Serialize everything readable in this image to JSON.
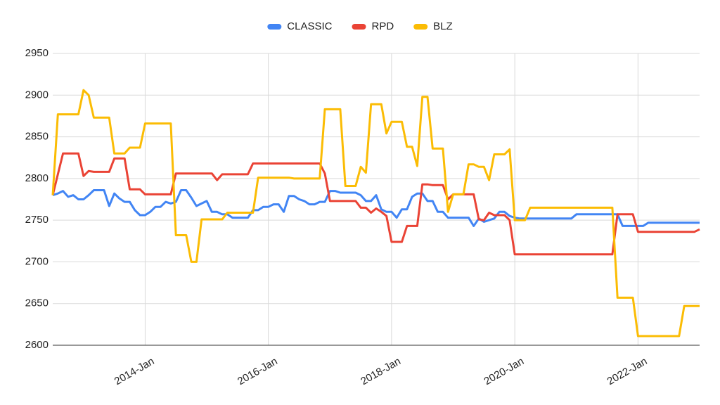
{
  "chart_data": {
    "type": "line",
    "categories": [
      null,
      null,
      null,
      null,
      null,
      null,
      null,
      null,
      null,
      null,
      null,
      null,
      null,
      null,
      null,
      null,
      null,
      null,
      "2014-Jan",
      null,
      null,
      null,
      null,
      null,
      null,
      null,
      null,
      null,
      null,
      null,
      null,
      null,
      null,
      null,
      null,
      null,
      null,
      null,
      null,
      null,
      null,
      null,
      "2016-Jan",
      null,
      null,
      null,
      null,
      null,
      null,
      null,
      null,
      null,
      null,
      null,
      null,
      null,
      null,
      null,
      null,
      null,
      null,
      null,
      null,
      null,
      null,
      null,
      "2018-Jan",
      null,
      null,
      null,
      null,
      null,
      null,
      null,
      null,
      null,
      null,
      null,
      null,
      null,
      null,
      null,
      null,
      null,
      null,
      null,
      null,
      null,
      null,
      null,
      "2020-Jan",
      null,
      null,
      null,
      null,
      null,
      null,
      null,
      null,
      null,
      null,
      null,
      null,
      null,
      null,
      null,
      null,
      null,
      null,
      null,
      null,
      null,
      null,
      null,
      "2022-Jan",
      null,
      null,
      null,
      null,
      null,
      null,
      null,
      null,
      null,
      null,
      null,
      null
    ],
    "series": [
      {
        "name": "CLASSIC",
        "color": "#4285f4",
        "values": [
          2780,
          2782,
          2785,
          2778,
          2780,
          2775,
          2775,
          2780,
          2786,
          2786,
          2786,
          2767,
          2782,
          2776,
          2772,
          2772,
          2762,
          2756,
          2756,
          2760,
          2766,
          2766,
          2772,
          2770,
          2772,
          2786,
          2786,
          2777,
          2767,
          2770,
          2773,
          2760,
          2760,
          2757,
          2757,
          2753,
          2753,
          2753,
          2753,
          2762,
          2762,
          2766,
          2766,
          2769,
          2769,
          2760,
          2779,
          2779,
          2775,
          2773,
          2769,
          2769,
          2772,
          2772,
          2785,
          2785,
          2783,
          2783,
          2783,
          2783,
          2780,
          2773,
          2773,
          2780,
          2763,
          2760,
          2760,
          2753,
          2763,
          2763,
          2778,
          2782,
          2782,
          2773,
          2773,
          2760,
          2760,
          2753,
          2753,
          2753,
          2753,
          2753,
          2743,
          2752,
          2748,
          2750,
          2752,
          2760,
          2760,
          2755,
          2753,
          2752,
          2752,
          2752,
          2752,
          2752,
          2752,
          2752,
          2752,
          2752,
          2752,
          2752,
          2757,
          2757,
          2757,
          2757,
          2757,
          2757,
          2757,
          2757,
          2757,
          2743,
          2743,
          2743,
          2743,
          2743,
          2747,
          2747,
          2747,
          2747,
          2747,
          2747,
          2747,
          2747,
          2747,
          2747,
          2747
        ]
      },
      {
        "name": "RPD",
        "color": "#ea4335",
        "values": [
          2780,
          2805,
          2830,
          2830,
          2830,
          2830,
          2803,
          2809,
          2808,
          2808,
          2808,
          2808,
          2824,
          2824,
          2824,
          2787,
          2787,
          2787,
          2781,
          2781,
          2781,
          2781,
          2781,
          2781,
          2806,
          2806,
          2806,
          2806,
          2806,
          2806,
          2806,
          2806,
          2798,
          2805,
          2805,
          2805,
          2805,
          2805,
          2805,
          2818,
          2818,
          2818,
          2818,
          2818,
          2818,
          2818,
          2818,
          2818,
          2818,
          2818,
          2818,
          2818,
          2818,
          2806,
          2773,
          2773,
          2773,
          2773,
          2773,
          2773,
          2765,
          2765,
          2759,
          2764,
          2760,
          2755,
          2724,
          2724,
          2724,
          2743,
          2743,
          2743,
          2793,
          2793,
          2792,
          2792,
          2792,
          2775,
          2781,
          2781,
          2781,
          2781,
          2781,
          2751,
          2750,
          2759,
          2756,
          2756,
          2756,
          2750,
          2709,
          2709,
          2709,
          2709,
          2709,
          2709,
          2709,
          2709,
          2709,
          2709,
          2709,
          2709,
          2709,
          2709,
          2709,
          2709,
          2709,
          2709,
          2709,
          2709,
          2757,
          2757,
          2757,
          2757,
          2736,
          2736,
          2736,
          2736,
          2736,
          2736,
          2736,
          2736,
          2736,
          2736,
          2736,
          2736,
          2739
        ]
      },
      {
        "name": "BLZ",
        "color": "#fbbc04",
        "values": [
          2780,
          2877,
          2877,
          2877,
          2877,
          2877,
          2906,
          2900,
          2873,
          2873,
          2873,
          2873,
          2830,
          2830,
          2830,
          2837,
          2837,
          2837,
          2866,
          2866,
          2866,
          2866,
          2866,
          2866,
          2732,
          2732,
          2732,
          2700,
          2700,
          2751,
          2751,
          2751,
          2751,
          2751,
          2759,
          2759,
          2759,
          2759,
          2759,
          2759,
          2801,
          2801,
          2801,
          2801,
          2801,
          2801,
          2801,
          2800,
          2800,
          2800,
          2800,
          2800,
          2800,
          2883,
          2883,
          2883,
          2883,
          2791,
          2791,
          2791,
          2814,
          2807,
          2889,
          2889,
          2889,
          2854,
          2868,
          2868,
          2868,
          2838,
          2838,
          2815,
          2898,
          2898,
          2836,
          2836,
          2836,
          2760,
          2781,
          2781,
          2781,
          2817,
          2817,
          2814,
          2814,
          2798,
          2829,
          2829,
          2829,
          2835,
          2750,
          2750,
          2750,
          2765,
          2765,
          2765,
          2765,
          2765,
          2765,
          2765,
          2765,
          2765,
          2765,
          2765,
          2765,
          2765,
          2765,
          2765,
          2765,
          2765,
          2657,
          2657,
          2657,
          2657,
          2611,
          2611,
          2611,
          2611,
          2611,
          2611,
          2611,
          2611,
          2611,
          2647,
          2647,
          2647,
          2647
        ]
      }
    ],
    "ylim": [
      2600,
      2950
    ],
    "yticks": [
      2600,
      2650,
      2700,
      2750,
      2800,
      2850,
      2900,
      2950
    ],
    "grid": true,
    "legend": "top"
  }
}
